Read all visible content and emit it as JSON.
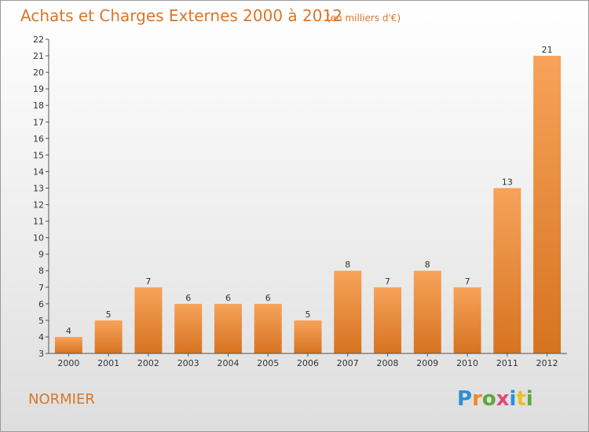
{
  "chart_data": {
    "type": "bar",
    "title": "Achats et Charges Externes 2000 à 2012",
    "subtitle": "(en milliers d'€)",
    "categories": [
      "2000",
      "2001",
      "2002",
      "2003",
      "2004",
      "2005",
      "2006",
      "2007",
      "2008",
      "2009",
      "2010",
      "2011",
      "2012"
    ],
    "values": [
      4,
      5,
      7,
      6,
      6,
      6,
      5,
      8,
      7,
      8,
      7,
      13,
      21
    ],
    "ylim": [
      3,
      22
    ],
    "yticks": [
      3,
      4,
      5,
      6,
      7,
      8,
      9,
      10,
      11,
      12,
      13,
      14,
      15,
      16,
      17,
      18,
      19,
      20,
      21,
      22
    ],
    "grid": false,
    "bar_color_top": "#f7a35a",
    "bar_color_bottom": "#d67320",
    "xlabel": "",
    "ylabel": ""
  },
  "footer": {
    "commune": "NORMIER",
    "logo_text": "Proxiti"
  },
  "colors": {
    "background_top": "#ffffff",
    "background_bottom": "#dedede",
    "accent": "#d9762a"
  }
}
